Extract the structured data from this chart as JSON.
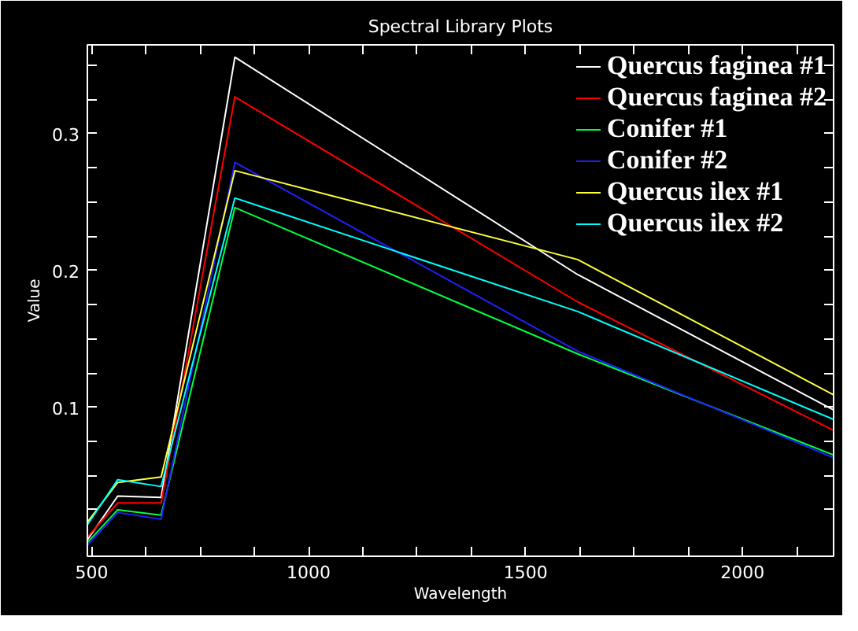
{
  "chart_data": {
    "type": "line",
    "title": "Spectral Library Plots",
    "xlabel": "Wavelength",
    "ylabel": "Value",
    "x": [
      490,
      560,
      660,
      830,
      1620,
      2210
    ],
    "series": [
      {
        "name": "Quercus faginea #1",
        "color": "#ffffff",
        "values": [
          0.003,
          0.035,
          0.034,
          0.356,
          0.197,
          0.098
        ]
      },
      {
        "name": "Quercus faginea #2",
        "color": "#ff0000",
        "values": [
          0.005,
          0.03,
          0.03,
          0.327,
          0.177,
          0.083
        ]
      },
      {
        "name": "Conifer #1",
        "color": "#00ff40",
        "values": [
          0.001,
          0.025,
          0.021,
          0.246,
          0.139,
          0.065
        ]
      },
      {
        "name": "Conifer #2",
        "color": "#2020ff",
        "values": [
          -0.001,
          0.023,
          0.018,
          0.279,
          0.141,
          0.063
        ]
      },
      {
        "name": "Quercus ilex #1",
        "color": "#ffff40",
        "values": [
          0.016,
          0.045,
          0.049,
          0.273,
          0.208,
          0.109
        ]
      },
      {
        "name": "Quercus ilex #2",
        "color": "#00ffff",
        "values": [
          0.014,
          0.047,
          0.042,
          0.253,
          0.17,
          0.091
        ]
      }
    ],
    "xlim": [
      490,
      2210
    ],
    "ylim": [
      -0.009,
      0.365
    ],
    "xticks": [
      500,
      {
        "value": 625,
        "label": null
      },
      {
        "value": 750,
        "label": null
      },
      {
        "value": 875,
        "label": null
      },
      {
        "value": 1000,
        "label": "1000"
      },
      {
        "value": 1125,
        "label": null
      },
      {
        "value": 1250,
        "label": null
      },
      {
        "value": 1375,
        "label": null
      },
      1500,
      {
        "value": 1625,
        "label": null
      },
      {
        "value": 1750,
        "label": null
      },
      {
        "value": 1875,
        "label": null
      },
      2000,
      {
        "value": 2125,
        "label": null
      }
    ],
    "yticks": [
      {
        "value": 0.025,
        "label": null
      },
      {
        "value": 0.05,
        "label": null
      },
      {
        "value": 0.075,
        "label": null
      },
      0.1,
      {
        "value": 0.125,
        "label": null
      },
      {
        "value": 0.15,
        "label": null
      },
      {
        "value": 0.175,
        "label": null
      },
      0.2,
      {
        "value": 0.225,
        "label": null
      },
      {
        "value": 0.25,
        "label": null
      },
      {
        "value": 0.275,
        "label": null
      },
      0.3,
      {
        "value": 0.325,
        "label": null
      },
      {
        "value": 0.35,
        "label": null
      }
    ],
    "grid": false,
    "legend": "top right",
    "line_style": "solid",
    "marker": "none"
  }
}
